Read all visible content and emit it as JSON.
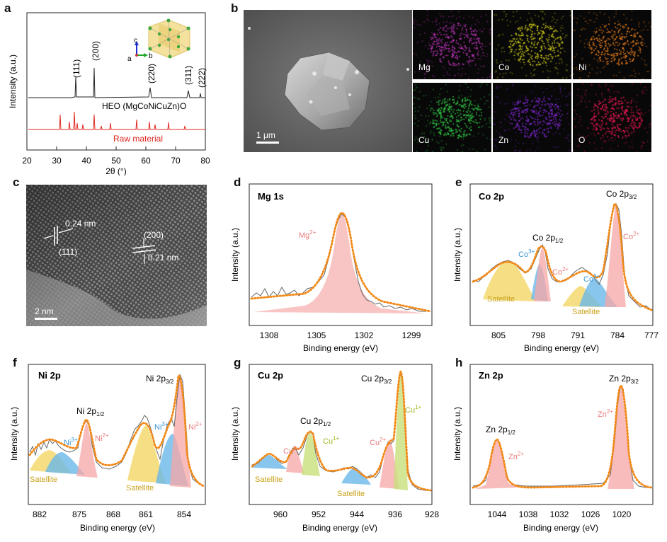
{
  "panels": {
    "a": "a",
    "b": "b",
    "c": "c",
    "d": "d",
    "e": "e",
    "f": "f",
    "g": "g",
    "h": "h"
  },
  "xrd": {
    "xlabel": "2θ (°)",
    "ylabel": "Intensity (a.u.)",
    "xticks": [
      "20",
      "30",
      "40",
      "50",
      "60",
      "70",
      "80"
    ],
    "peaks": [
      "(111)",
      "(200)",
      "(220)",
      "(311)",
      "(222)"
    ],
    "heo_label": "HEO (MgCoNiCuZn)O",
    "raw_label": "Raw material",
    "axis_letters": {
      "c": "c",
      "b": "b",
      "a": "a"
    }
  },
  "sem": {
    "scalebar": "1 μm",
    "maps": [
      {
        "label": "Mg",
        "color": "#d43ad0"
      },
      {
        "label": "Co",
        "color": "#e6e21a"
      },
      {
        "label": "Ni",
        "color": "#ff8a1f"
      },
      {
        "label": "Cu",
        "color": "#36d84a"
      },
      {
        "label": "Zn",
        "color": "#8a2be2"
      },
      {
        "label": "O",
        "color": "#ff1a5a"
      }
    ]
  },
  "tem": {
    "d1": "0.24 nm",
    "plane1": "(111)",
    "plane2": "(200)",
    "d2": "0.21 nm",
    "scalebar": "2 nm"
  },
  "common": {
    "xlabel": "Binding energy (eV)",
    "ylabel": "Intensity (a.u.)"
  },
  "xps": {
    "mg": {
      "title": "Mg 1s",
      "ticks": [
        "1308",
        "1305",
        "1302",
        "1299"
      ],
      "ion": "Mg2+"
    },
    "co": {
      "title": "Co 2p",
      "ticks": [
        "805",
        "798",
        "791",
        "784",
        "777"
      ],
      "p12": "Co 2p1/2",
      "p32": "Co 2p3/2",
      "co3a": "Co3+",
      "co2a": "Co2+",
      "co3b": "Co3+",
      "co2b": "Co2+",
      "sat1": "Satellite",
      "sat2": "Satellite"
    },
    "ni": {
      "title": "Ni 2p",
      "ticks": [
        "882",
        "875",
        "868",
        "861",
        "854"
      ],
      "p12": "Ni 2p1/2",
      "p32": "Ni 2p3/2",
      "ni3a": "Ni3+",
      "ni2a": "Ni2+",
      "ni3b": "Ni3+",
      "ni2b": "Ni2+",
      "sat1": "Satellite",
      "sat2": "Satellite"
    },
    "cu": {
      "title": "Cu 2p",
      "ticks": [
        "960",
        "952",
        "944",
        "936",
        "928"
      ],
      "p12": "Cu 2p1/2",
      "p32": "Cu 2p3/2",
      "cu2a": "Cu2+",
      "cu1a": "Cu1+",
      "cu2b": "Cu2+",
      "cu1b": "Cu1+",
      "sat1": "Satellite",
      "sat2": "Satellite"
    },
    "zn": {
      "title": "Zn 2p",
      "ticks": [
        "1044",
        "1038",
        "1032",
        "1026",
        "1020"
      ],
      "p12": "Zn 2p1/2",
      "p32": "Zn 2p3/2",
      "zn2a": "Zn2+",
      "zn2b": "Zn2+"
    }
  },
  "colors": {
    "fit": "#f28a1a",
    "raw": "#555555",
    "pink": "#f7a6a6",
    "yellow": "#f2d35a",
    "blue": "#6ab8ea",
    "green": "#c8e07a",
    "red": "#e0261e"
  }
}
